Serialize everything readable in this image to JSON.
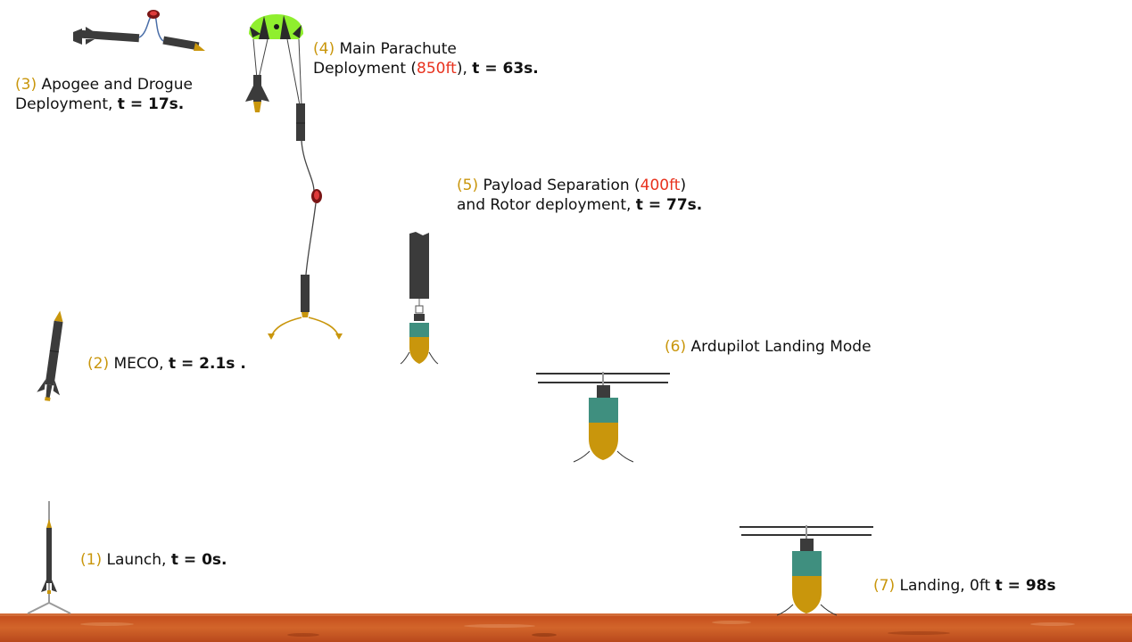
{
  "colors": {
    "step_number": "#c9960c",
    "altitude": "#e8321e",
    "rocket_body": "#3b3b3b",
    "nose_cone": "#c9960c",
    "payload_body": "#3f8f7f",
    "parachute_green": "#8fef2e",
    "ground": "#c9551f"
  },
  "icons": [
    "rocket-icon",
    "parachute-icon",
    "drone-rotor-icon",
    "launch-rail-icon",
    "mars-ground"
  ],
  "stages": [
    {
      "num": "(1)",
      "t1": " Launch, ",
      "tb": "t = 0s."
    },
    {
      "num": "(2)",
      "t1": " MECO, ",
      "tb": "t = 2.1s ."
    },
    {
      "num": "(3)",
      "t1": " Apogee and Drogue",
      "t2": "Deployment, ",
      "tb": "t = 17s."
    },
    {
      "num": "(4)",
      "t1": " Main Parachute",
      "t2": "Deployment (",
      "alt": "850ft",
      "t3": "), ",
      "tb": "t = 63s."
    },
    {
      "num": "(5)",
      "t1": " Payload Separation (",
      "alt": "400ft",
      "t2": ")",
      "t3": "and Rotor deployment, ",
      "tb": "t = 77s."
    },
    {
      "num": "(6)",
      "t1": " Ardupilot Landing Mode"
    },
    {
      "num": "(7)",
      "t1": " Landing,  0ft ",
      "tb": "t = 98s"
    }
  ]
}
